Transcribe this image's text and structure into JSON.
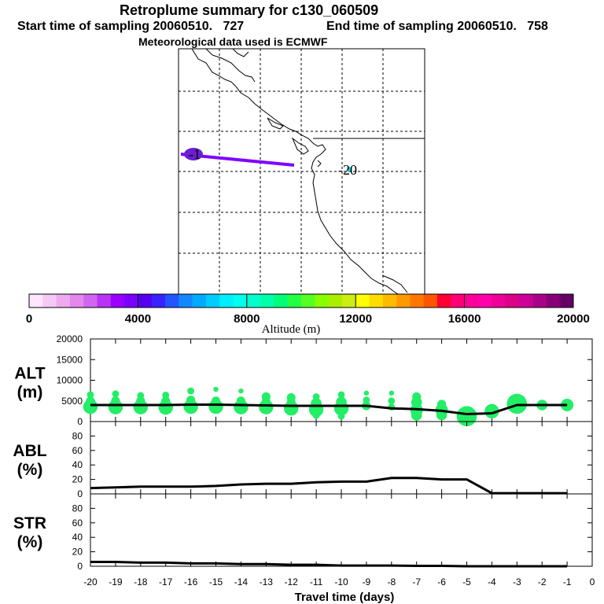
{
  "header": {
    "title": "Retroplume summary for c130_060509",
    "start_label": "Start time of sampling 20060510.   727",
    "end_label": "End time of sampling 20060510.   758",
    "met_label": "Meteorological data used is ECMWF"
  },
  "map": {
    "label_start": "-1",
    "label_end": "-20",
    "trajectory_color": "#7f00ff",
    "start_marker_color": "#6a1fd0",
    "end_marker_color": "#00e0ff"
  },
  "colorbar": {
    "title": "Altitude (m)",
    "min": 0,
    "max": 20000,
    "tick_labels": [
      "0",
      "4000",
      "8000",
      "12000",
      "16000",
      "20000"
    ],
    "colors": [
      "#ffe6ff",
      "#f5c8f5",
      "#eeaaee",
      "#e488ee",
      "#d066f0",
      "#b833f5",
      "#9900ff",
      "#7a00ff",
      "#5500ee",
      "#3a22ff",
      "#2255ff",
      "#1188ff",
      "#00aaff",
      "#00ccff",
      "#00eeff",
      "#00ffee",
      "#00ffcc",
      "#00ffaa",
      "#00ff77",
      "#22ff44",
      "#55ff22",
      "#88ff00",
      "#aaee00",
      "#ccee11",
      "#ffff00",
      "#ffdd00",
      "#ffbb00",
      "#ff9900",
      "#ff7700",
      "#ff5500",
      "#ff0033",
      "#ff0077",
      "#ff0099",
      "#ff00aa",
      "#ee0099",
      "#dd0088",
      "#cc0099",
      "#aa0088",
      "#880077",
      "#660066"
    ]
  },
  "chart_data": [
    {
      "type": "scatter",
      "title": "",
      "ylabel": "ALT\n(m)",
      "ylabel_lines": [
        "ALT",
        "(m)"
      ],
      "ylim": [
        0,
        20000
      ],
      "yticks": [
        "0",
        "5000",
        "10000",
        "15000",
        "20000"
      ],
      "yticks_values": [
        0,
        5000,
        10000,
        15000,
        20000
      ],
      "line_x": [
        -20,
        -19,
        -18,
        -17,
        -16,
        -15,
        -14,
        -13,
        -12,
        -11,
        -10,
        -9,
        -8,
        -7,
        -6,
        -5,
        -4,
        -3,
        -2,
        -1
      ],
      "line_y": [
        4000,
        4000,
        4000,
        4000,
        4100,
        4100,
        4000,
        3900,
        3800,
        3800,
        3800,
        3800,
        3200,
        3000,
        2600,
        1800,
        2000,
        4000,
        4000,
        4000
      ],
      "points": [
        {
          "x": -20,
          "y": 3600,
          "s": 6
        },
        {
          "x": -20,
          "y": 5000,
          "s": 3
        },
        {
          "x": -20,
          "y": 6500,
          "s": 2
        },
        {
          "x": -19,
          "y": 3500,
          "s": 6
        },
        {
          "x": -19,
          "y": 5000,
          "s": 3
        },
        {
          "x": -19,
          "y": 6700,
          "s": 2
        },
        {
          "x": -18,
          "y": 3500,
          "s": 6
        },
        {
          "x": -18,
          "y": 5000,
          "s": 3
        },
        {
          "x": -18,
          "y": 6300,
          "s": 2
        },
        {
          "x": -17,
          "y": 3400,
          "s": 6
        },
        {
          "x": -17,
          "y": 5000,
          "s": 3
        },
        {
          "x": -17,
          "y": 6400,
          "s": 2
        },
        {
          "x": -16,
          "y": 3600,
          "s": 6
        },
        {
          "x": -16,
          "y": 5200,
          "s": 3
        },
        {
          "x": -16,
          "y": 7400,
          "s": 2
        },
        {
          "x": -15,
          "y": 3600,
          "s": 6
        },
        {
          "x": -15,
          "y": 5000,
          "s": 3
        },
        {
          "x": -15,
          "y": 7800,
          "s": 1
        },
        {
          "x": -14,
          "y": 3500,
          "s": 6
        },
        {
          "x": -14,
          "y": 5000,
          "s": 3
        },
        {
          "x": -14,
          "y": 7400,
          "s": 1
        },
        {
          "x": -13,
          "y": 3500,
          "s": 6
        },
        {
          "x": -13,
          "y": 4800,
          "s": 3
        },
        {
          "x": -13,
          "y": 6000,
          "s": 3
        },
        {
          "x": -12,
          "y": 3200,
          "s": 6
        },
        {
          "x": -12,
          "y": 4700,
          "s": 3
        },
        {
          "x": -12,
          "y": 5800,
          "s": 3
        },
        {
          "x": -11,
          "y": 2900,
          "s": 6
        },
        {
          "x": -11,
          "y": 4400,
          "s": 4
        },
        {
          "x": -11,
          "y": 6000,
          "s": 2
        },
        {
          "x": -11,
          "y": 1500,
          "s": 2
        },
        {
          "x": -10,
          "y": 3200,
          "s": 6
        },
        {
          "x": -10,
          "y": 4700,
          "s": 4
        },
        {
          "x": -10,
          "y": 6500,
          "s": 2
        },
        {
          "x": -10,
          "y": 1300,
          "s": 2
        },
        {
          "x": -9,
          "y": 3800,
          "s": 3
        },
        {
          "x": -9,
          "y": 5200,
          "s": 2
        },
        {
          "x": -9,
          "y": 6900,
          "s": 1
        },
        {
          "x": -8,
          "y": 3500,
          "s": 2
        },
        {
          "x": -8,
          "y": 5000,
          "s": 2
        },
        {
          "x": -8,
          "y": 6900,
          "s": 1
        },
        {
          "x": -7,
          "y": 2800,
          "s": 5
        },
        {
          "x": -7,
          "y": 1500,
          "s": 4
        },
        {
          "x": -7,
          "y": 4700,
          "s": 4
        },
        {
          "x": -7,
          "y": 6000,
          "s": 3
        },
        {
          "x": -6,
          "y": 2800,
          "s": 5
        },
        {
          "x": -6,
          "y": 1600,
          "s": 4
        },
        {
          "x": -6,
          "y": 4200,
          "s": 3
        },
        {
          "x": -5,
          "y": 1300,
          "s": 9
        },
        {
          "x": -4,
          "y": 2500,
          "s": 6
        },
        {
          "x": -3,
          "y": 4300,
          "s": 9
        },
        {
          "x": -2,
          "y": 4000,
          "s": 4
        },
        {
          "x": -1,
          "y": 4000,
          "s": 5
        }
      ]
    },
    {
      "type": "line",
      "ylabel": "ABL\n(%)",
      "ylabel_lines": [
        "ABL",
        "(%)"
      ],
      "ylim": [
        0,
        100
      ],
      "yticks": [
        "0",
        "20",
        "40",
        "60",
        "80"
      ],
      "yticks_values": [
        0,
        20,
        40,
        60,
        80
      ],
      "x": [
        -20,
        -19,
        -18,
        -17,
        -16,
        -15,
        -14,
        -13,
        -12,
        -11,
        -10,
        -9,
        -8,
        -7,
        -6,
        -5,
        -4,
        -3,
        -2,
        -1
      ],
      "y": [
        8,
        9,
        10,
        10,
        10,
        11,
        13,
        14,
        14,
        16,
        17,
        17,
        22,
        22,
        20,
        20,
        1,
        1,
        1,
        1
      ]
    },
    {
      "type": "line",
      "ylabel": "STR\n(%)",
      "ylabel_lines": [
        "STR",
        "(%)"
      ],
      "ylim": [
        0,
        100
      ],
      "yticks": [
        "0",
        "20",
        "40",
        "60",
        "80"
      ],
      "yticks_values": [
        0,
        20,
        40,
        60,
        80
      ],
      "x": [
        -20,
        -19,
        -18,
        -17,
        -16,
        -15,
        -14,
        -13,
        -12,
        -11,
        -10,
        -9,
        -8,
        -7,
        -6,
        -5,
        -4,
        -3,
        -2,
        -1
      ],
      "y": [
        6,
        6,
        5,
        5,
        4,
        4,
        3,
        3,
        2,
        2,
        1,
        1,
        1,
        0.5,
        0.5,
        0,
        0,
        0,
        0,
        0
      ],
      "xlabel": "Travel time (days)",
      "xlim": [
        -20,
        0
      ],
      "xticks": [
        "-20",
        "-19",
        "-18",
        "-17",
        "-16",
        "-15",
        "-14",
        "-13",
        "-12",
        "-11",
        "-10",
        "-9",
        "-8",
        "-7",
        "-6",
        "-5",
        "-4",
        "-3",
        "-2",
        "-1",
        "0"
      ],
      "xticks_values": [
        -20,
        -19,
        -18,
        -17,
        -16,
        -15,
        -14,
        -13,
        -12,
        -11,
        -10,
        -9,
        -8,
        -7,
        -6,
        -5,
        -4,
        -3,
        -2,
        -1,
        0
      ]
    }
  ]
}
